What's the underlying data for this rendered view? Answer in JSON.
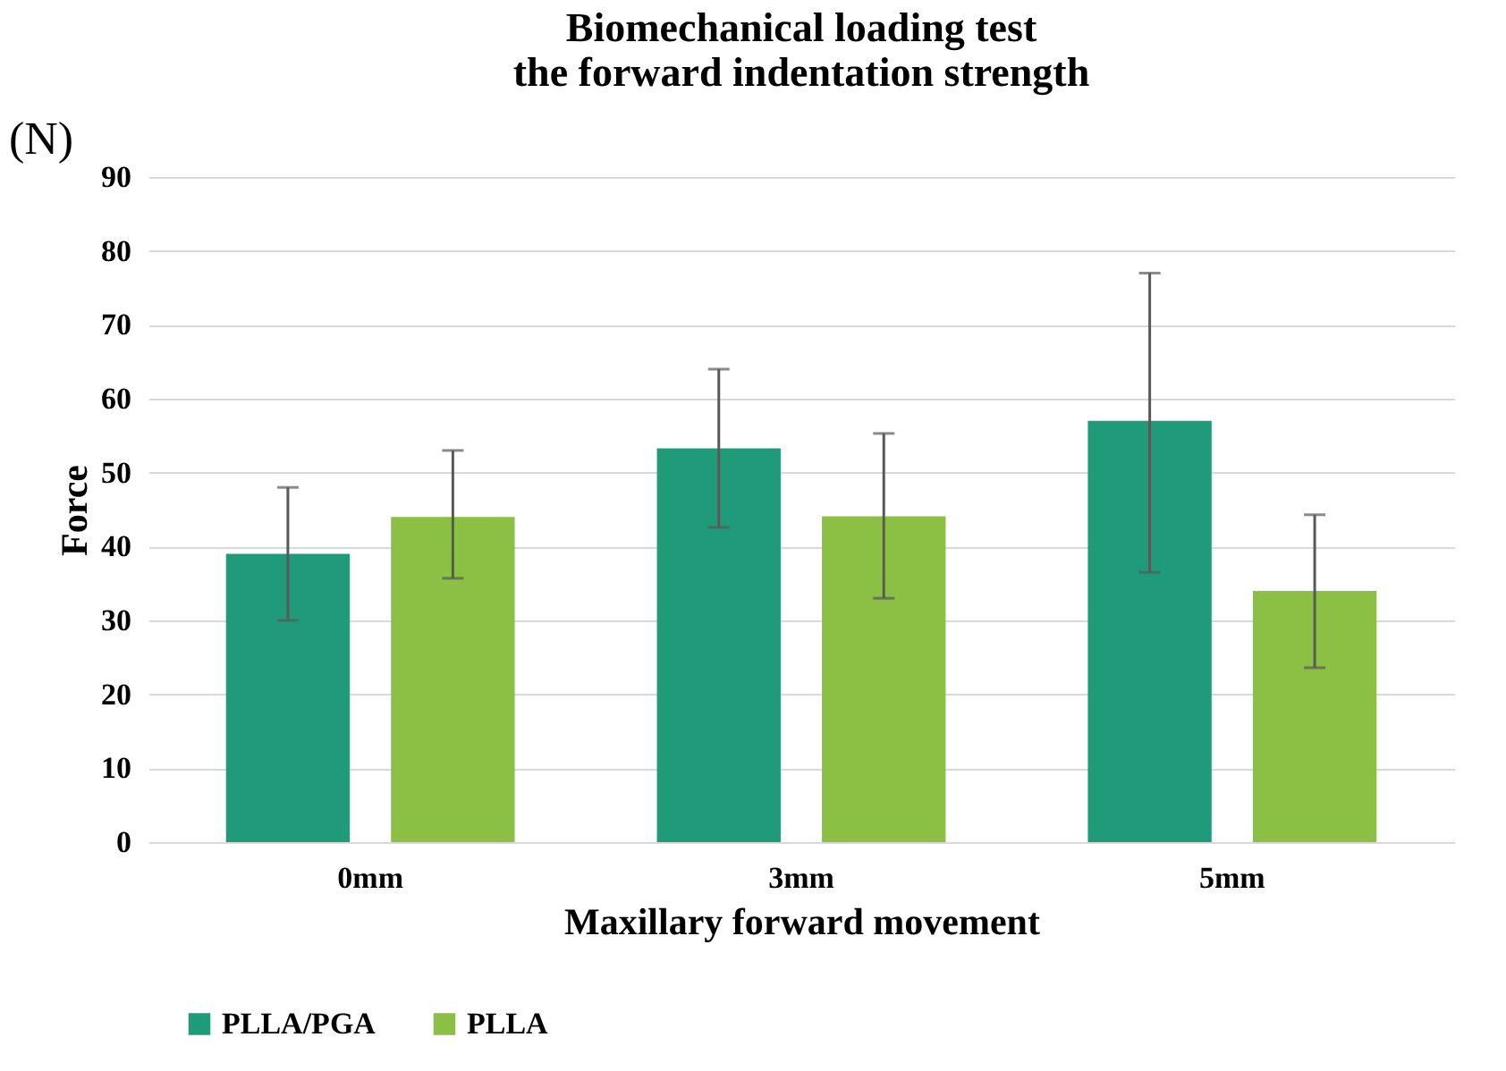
{
  "chart_data": {
    "type": "bar",
    "title": "Biomechanical loading test\nthe forward indentation strength",
    "xlabel": "Maxillary forward movement",
    "ylabel": "Force",
    "annotations": [
      "(N)"
    ],
    "categories": [
      "0mm",
      "3mm",
      "5mm"
    ],
    "series": [
      {
        "name": "PLLA/PGA",
        "color": "#1f9b7a",
        "values": [
          39,
          53.3,
          57
        ],
        "errors": [
          [
            30,
            48
          ],
          [
            42.6,
            64
          ],
          [
            36.5,
            77
          ]
        ]
      },
      {
        "name": "PLLA",
        "color": "#8bc045",
        "values": [
          44,
          44.1,
          34
        ],
        "errors": [
          [
            35.7,
            53
          ],
          [
            33,
            55.3
          ],
          [
            23.6,
            44.3
          ]
        ]
      }
    ],
    "ylim": [
      0,
      90
    ],
    "yticks": [
      0,
      10,
      20,
      30,
      40,
      50,
      60,
      70,
      80,
      90
    ],
    "grid": "y",
    "legend": "bottom"
  }
}
